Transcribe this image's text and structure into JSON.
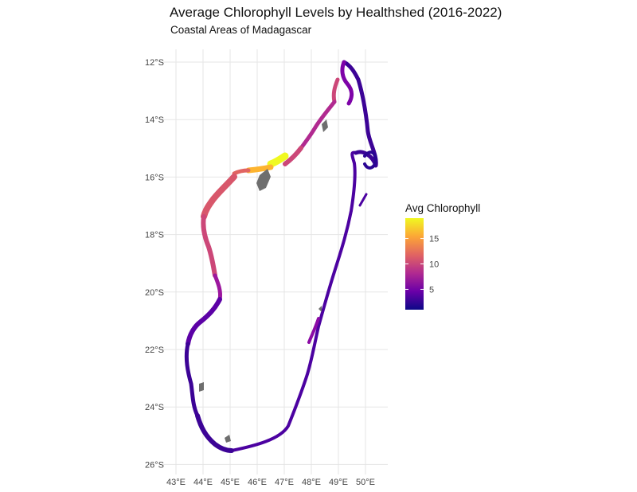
{
  "header": {
    "title": "Average Chlorophyll Levels by Healthshed (2016-2022)",
    "subtitle": "Coastal Areas of Madagascar"
  },
  "map": {
    "y_ticks": [
      {
        "label": "12°S",
        "lat": -12
      },
      {
        "label": "14°S",
        "lat": -14
      },
      {
        "label": "16°S",
        "lat": -16
      },
      {
        "label": "18°S",
        "lat": -18
      },
      {
        "label": "20°S",
        "lat": -20
      },
      {
        "label": "22°S",
        "lat": -22
      },
      {
        "label": "24°S",
        "lat": -24
      },
      {
        "label": "26°S",
        "lat": -26
      }
    ],
    "x_ticks": [
      {
        "label": "43°E",
        "lon": 43
      },
      {
        "label": "44°E",
        "lon": 44
      },
      {
        "label": "45°E",
        "lon": 45
      },
      {
        "label": "46°E",
        "lon": 46
      },
      {
        "label": "47°E",
        "lon": 47
      },
      {
        "label": "48°E",
        "lon": 48
      },
      {
        "label": "49°E",
        "lon": 49
      },
      {
        "label": "50°E",
        "lon": 50
      }
    ]
  },
  "legend": {
    "title": "Avg Chlorophyll",
    "ticks": [
      {
        "label": "5",
        "value": 5
      },
      {
        "label": "10",
        "value": 10
      },
      {
        "label": "15",
        "value": 15
      }
    ],
    "range": [
      1,
      19
    ],
    "colors": [
      "#0d0887",
      "#6a00a8",
      "#b12a90",
      "#e16462",
      "#fca636",
      "#f0f921"
    ],
    "na_color": "#6e6e6e"
  }
}
